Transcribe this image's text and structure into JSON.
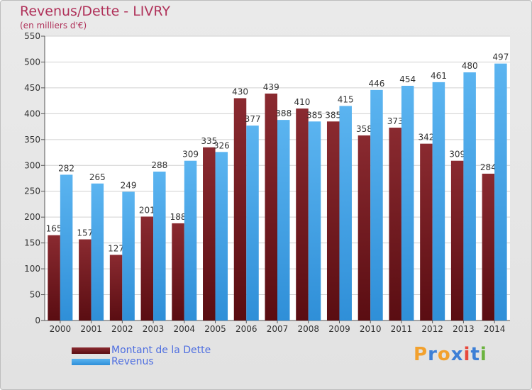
{
  "chart_data": {
    "type": "bar",
    "title": "Revenus/Dette - LIVRY",
    "subtitle": "(en milliers d'€)",
    "categories": [
      "2000",
      "2001",
      "2002",
      "2003",
      "2004",
      "2005",
      "2006",
      "2007",
      "2008",
      "2009",
      "2010",
      "2011",
      "2012",
      "2013",
      "2014"
    ],
    "series": [
      {
        "name": "Montant de la Dette",
        "color": "#7b1c22",
        "values": [
          165,
          157,
          127,
          201,
          188,
          335,
          430,
          439,
          410,
          385,
          358,
          373,
          342,
          309,
          284
        ]
      },
      {
        "name": "Revenus",
        "color": "#3fa0e6",
        "values": [
          282,
          265,
          249,
          288,
          309,
          326,
          377,
          388,
          385,
          415,
          446,
          454,
          461,
          480,
          497
        ]
      }
    ],
    "ylim": [
      0,
      550
    ],
    "yticks": [
      0,
      50,
      100,
      150,
      200,
      250,
      300,
      350,
      400,
      450,
      500,
      550
    ],
    "grid": true,
    "legend_position": "bottom-left"
  },
  "logo": {
    "text": "Proxiti",
    "colors": [
      "#f2a12e",
      "#3d7fd6",
      "#f2a12e",
      "#3d7fd6",
      "#e8483c",
      "#3d7fd6",
      "#6bb33f"
    ]
  }
}
